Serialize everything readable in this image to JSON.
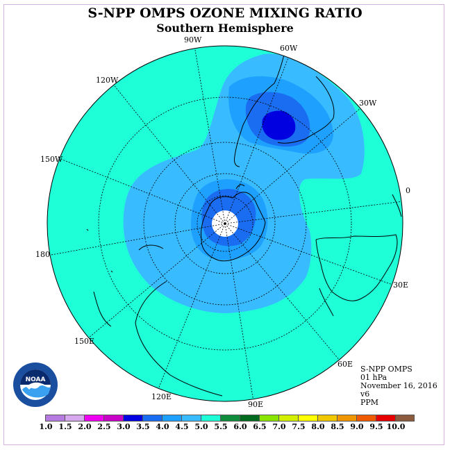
{
  "title": "S-NPP OMPS OZONE MIXING RATIO",
  "subtitle": "Southern Hemisphere",
  "longitude_labels": [
    "90W",
    "60W",
    "30W",
    "0",
    "30E",
    "60E",
    "90E",
    "120E",
    "150E",
    "180",
    "150W",
    "120W"
  ],
  "info": {
    "instrument": "S-NPP OMPS",
    "level": "01 hPa",
    "date": "November 16, 2016",
    "version": "v6",
    "units": "PPM"
  },
  "colorbar": {
    "labels": [
      "1.0",
      "1.5",
      "2.0",
      "2.5",
      "3.0",
      "3.5",
      "4.0",
      "4.5",
      "5.0",
      "5.5",
      "6.0",
      "6.5",
      "7.0",
      "7.5",
      "8.0",
      "8.5",
      "9.0",
      "9.5",
      "10.0"
    ],
    "colors": [
      "#b57be0",
      "#d8a8ee",
      "#f000f0",
      "#c800c8",
      "#0000e0",
      "#1a6cf0",
      "#1ea0ff",
      "#38bcff",
      "#1effd8",
      "#0f8c3c",
      "#006a1e",
      "#8ae600",
      "#d2f000",
      "#ffff00",
      "#f0c800",
      "#f09600",
      "#f05a00",
      "#e60000",
      "#8c5a3c"
    ]
  },
  "logo": {
    "text": "NOAA",
    "ring_text": "NATIONAL OCEANIC AND ATMOSPHERIC ADMINISTRATION"
  },
  "map_colors": {
    "background_level": "#1effd8",
    "mid_level": "#38bcff",
    "upper_level": "#1ea0ff",
    "high_level": "#1a6cf0",
    "peak_level": "#0000e0"
  }
}
